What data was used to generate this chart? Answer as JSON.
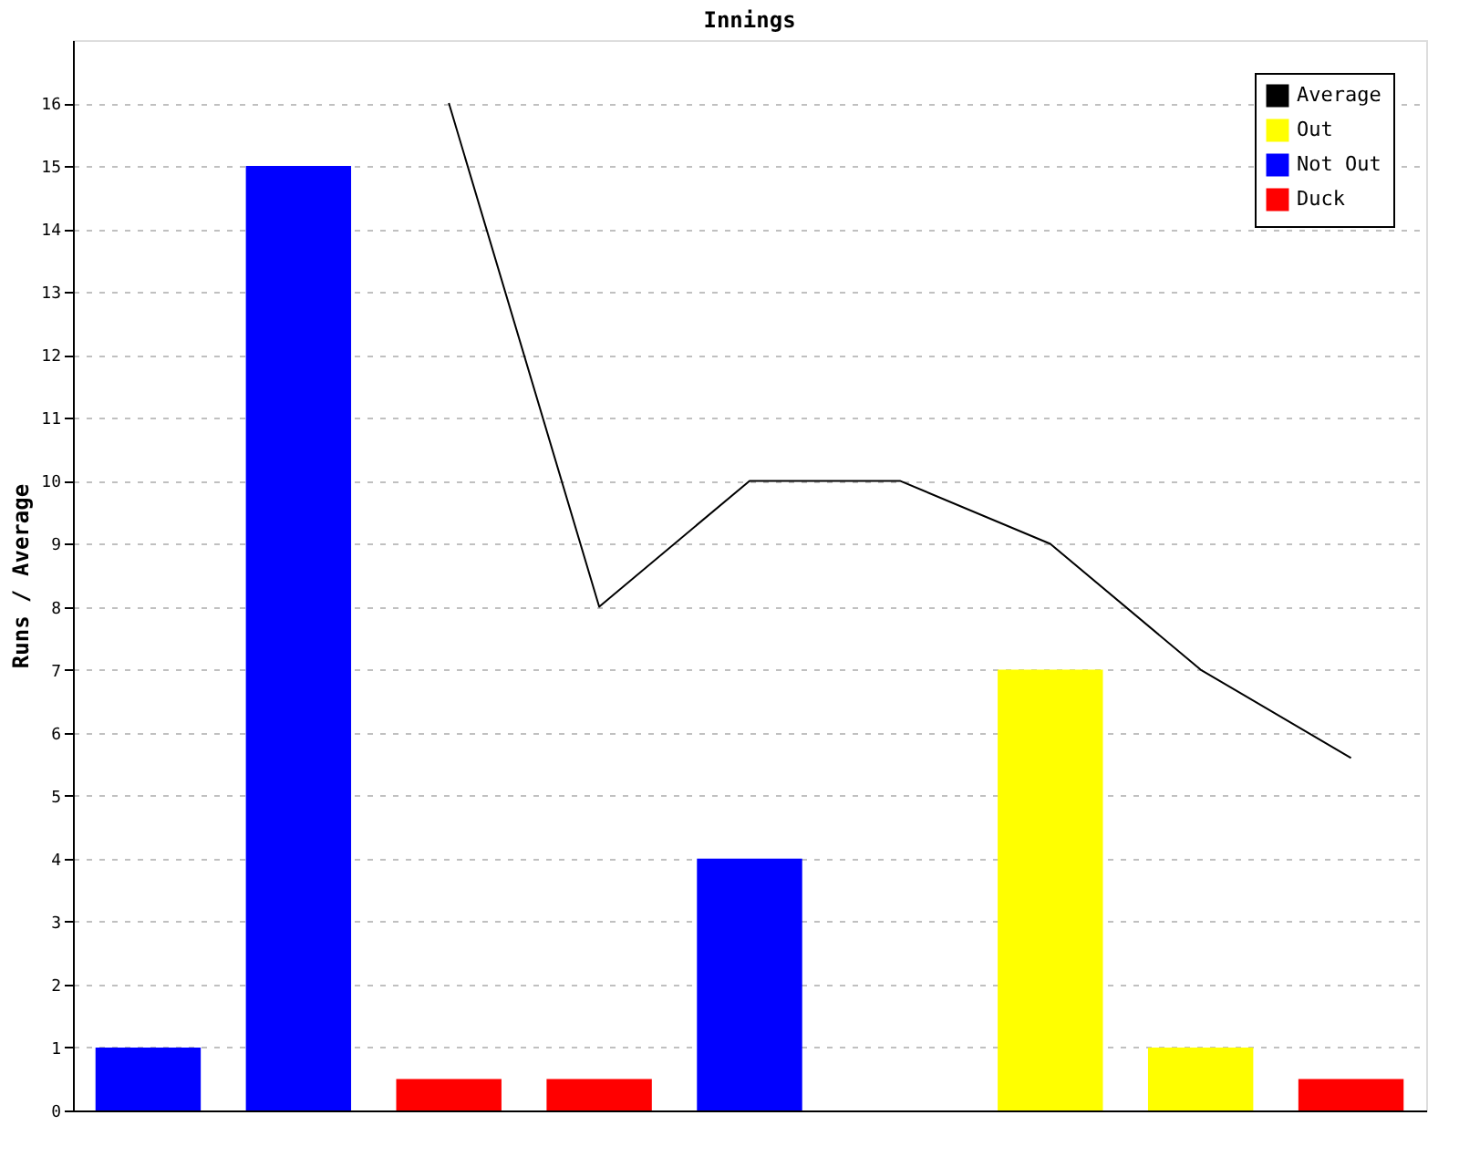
{
  "chart_data": {
    "type": "bar",
    "title": "Innings",
    "ylabel": "Runs / Average",
    "categories": [
      null,
      null,
      null,
      null,
      null,
      null,
      null,
      null,
      null
    ],
    "series": [
      {
        "name": "Average",
        "type": "line",
        "color": "#000000",
        "values": [
          null,
          null,
          16,
          8,
          10,
          10,
          9,
          7,
          5.6
        ]
      },
      {
        "name": "Out",
        "color": "#ffff00",
        "values": [
          null,
          null,
          null,
          null,
          null,
          null,
          7,
          1,
          null
        ]
      },
      {
        "name": "Not Out",
        "color": "#0000ff",
        "values": [
          1,
          15,
          null,
          null,
          4,
          null,
          null,
          null,
          null
        ]
      },
      {
        "name": "Duck",
        "color": "#ff0000",
        "values": [
          null,
          null,
          0.5,
          0.5,
          null,
          null,
          null,
          null,
          0.5
        ]
      }
    ],
    "ylim": [
      0,
      17
    ],
    "yticks": [
      0,
      1,
      2,
      3,
      4,
      5,
      6,
      7,
      8,
      9,
      10,
      11,
      12,
      13,
      14,
      15,
      16
    ],
    "grid": "y",
    "legend": "top right",
    "tick_labels": "y"
  }
}
